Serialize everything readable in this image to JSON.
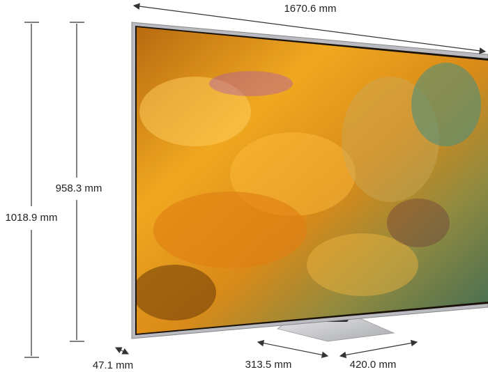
{
  "dimensions": {
    "width": "1670.6 mm",
    "screen_height": "958.3 mm",
    "total_height": "1018.9 mm",
    "depth": "47.1 mm",
    "stand_depth": "313.5 mm",
    "stand_width": "420.0 mm"
  }
}
